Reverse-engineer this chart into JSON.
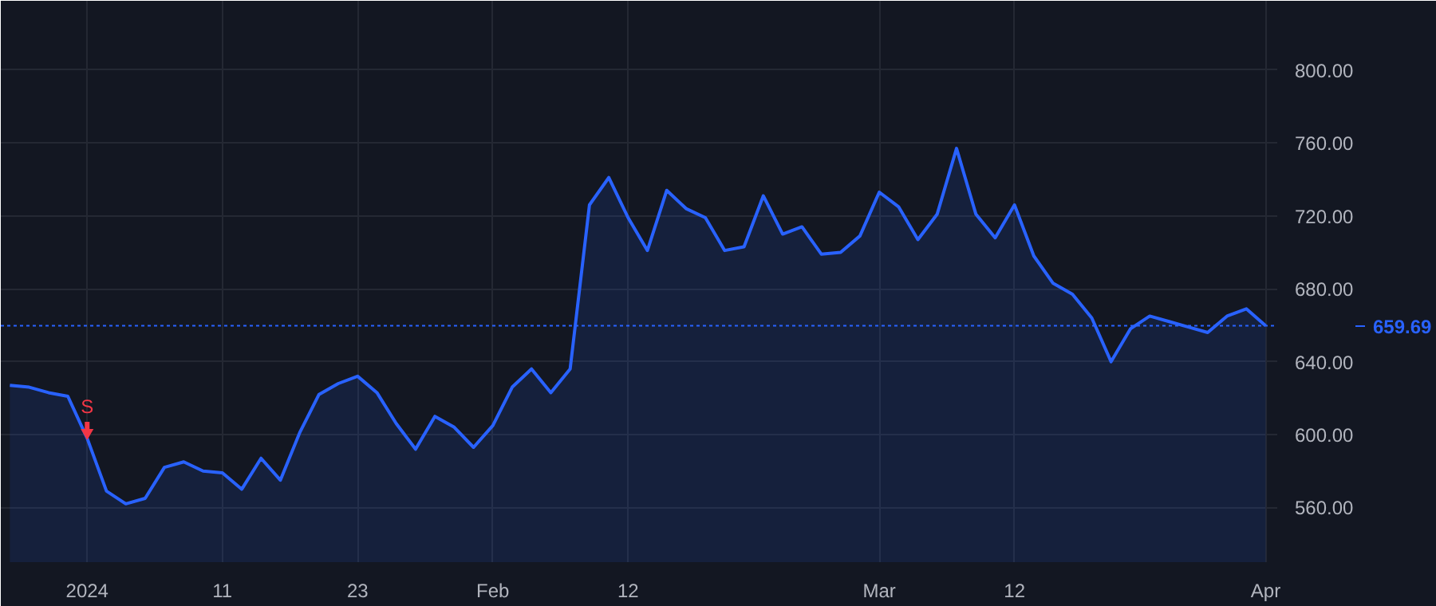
{
  "chart_data": {
    "type": "area",
    "categories": [
      null,
      null,
      null,
      null,
      "2024",
      null,
      null,
      null,
      null,
      null,
      null,
      "11",
      null,
      null,
      null,
      null,
      null,
      null,
      "23",
      null,
      null,
      null,
      null,
      null,
      null,
      "Feb",
      null,
      null,
      null,
      null,
      null,
      null,
      "12",
      null,
      null,
      null,
      null,
      null,
      null,
      null,
      null,
      null,
      null,
      null,
      null,
      "Mar",
      null,
      null,
      null,
      null,
      null,
      null,
      "12",
      null,
      null,
      null,
      null,
      null,
      null,
      null,
      null,
      null,
      null,
      null,
      null,
      "Apr"
    ],
    "series": [
      {
        "color": "#2962ff",
        "values": [
          627,
          626,
          623,
          621,
          598,
          569,
          562,
          565,
          582,
          585,
          580,
          579,
          570,
          587,
          575,
          601,
          622,
          628,
          632,
          623,
          606,
          592,
          610,
          604,
          593,
          605,
          626,
          636,
          623,
          636,
          726,
          741,
          719,
          701,
          734,
          724,
          719,
          701,
          703,
          731,
          710,
          714,
          699,
          700,
          709,
          733,
          725,
          707,
          721,
          757,
          721,
          708,
          726,
          698,
          683,
          677,
          664,
          640,
          658,
          665,
          662,
          659,
          656,
          665,
          669,
          659.69
        ]
      }
    ],
    "ylim": [
      530,
      838
    ],
    "yticks": [
      {
        "value": 560,
        "label": "560.00"
      },
      {
        "value": 600,
        "label": "600.00"
      },
      {
        "value": 640,
        "label": "640.00"
      },
      {
        "value": 680,
        "label": "680.00"
      },
      {
        "value": 720,
        "label": "720.00"
      },
      {
        "value": 760,
        "label": "760.00"
      },
      {
        "value": 800,
        "label": "800.00"
      }
    ],
    "grid": true,
    "ref_lines": [
      {
        "axis": "y",
        "value": 659.69,
        "label": "659.69",
        "color": "#2962ff",
        "line_style": "dotted"
      }
    ],
    "annotations": [
      {
        "text": "S",
        "x": "2024",
        "y": 598
      }
    ]
  }
}
